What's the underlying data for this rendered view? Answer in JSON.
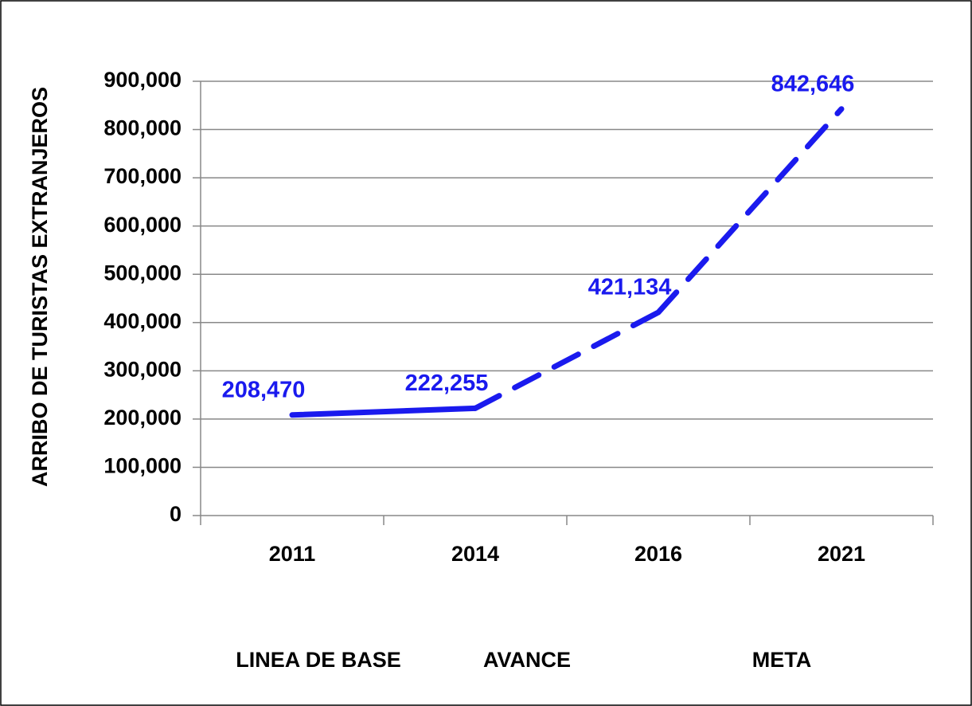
{
  "chart_data": {
    "type": "line",
    "y_axis_label": "ARRIBO DE TURISTAS EXTRANJEROS",
    "categories": [
      "2011",
      "2014",
      "2016",
      "2021"
    ],
    "series": [
      {
        "color": "#1a1aee",
        "values": [
          208470,
          222255,
          421134,
          842646
        ],
        "value_labels": [
          "208,470",
          "222,255",
          "421,134",
          "842,646"
        ],
        "segment_styles": [
          "solid",
          "dashed",
          "dashed"
        ]
      }
    ],
    "ylim": [
      0,
      900000
    ],
    "yticks": [
      0,
      {
        "value": 100000,
        "label": "100,000"
      },
      {
        "value": 200000,
        "label": "200,000"
      },
      {
        "value": 300000,
        "label": "300,000"
      },
      {
        "value": 400000,
        "label": "400,000"
      },
      {
        "value": 500000,
        "label": "500,000"
      },
      {
        "value": 600000,
        "label": "600,000"
      },
      {
        "value": 700000,
        "label": "700,000"
      },
      {
        "value": 800000,
        "label": "800,000"
      },
      {
        "value": 900000,
        "label": "900,000"
      }
    ],
    "grid": true,
    "annotations": [
      "LINEA DE BASE",
      "AVANCE",
      "META"
    ]
  }
}
